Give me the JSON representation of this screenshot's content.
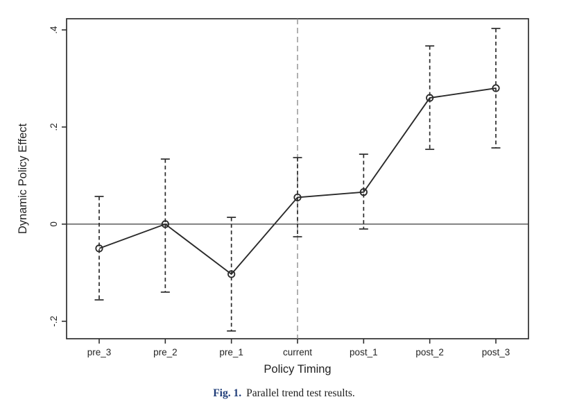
{
  "caption": {
    "prefix": "Fig. 1.",
    "text": "Parallel trend test results."
  },
  "colors": {
    "axis": "#2e2e2e",
    "series_line": "#2a2a2a",
    "error_bar": "#2a2a2a",
    "zero_line": "#3a3a3a",
    "reference_line": "#8f8f8f",
    "marker_stroke": "#2a2a2a",
    "text": "#242424",
    "caption_prefix": "#1f3c78",
    "background": "#ffffff"
  },
  "chart_data": {
    "type": "line",
    "title": "",
    "xlabel": "Policy Timing",
    "ylabel": "Dynamic Policy Effect",
    "categories": [
      "pre_3",
      "pre_2",
      "pre_1",
      "current",
      "post_1",
      "post_2",
      "post_3"
    ],
    "series": [
      {
        "name": "Dynamic Policy Effect",
        "marker": "open-circle",
        "values": [
          -0.05,
          0.0,
          -0.103,
          0.055,
          0.066,
          0.26,
          0.28
        ]
      }
    ],
    "error_bars": {
      "style": "dashed-with-caps",
      "lower": [
        -0.156,
        -0.14,
        -0.22,
        -0.026,
        -0.01,
        0.154,
        0.157
      ],
      "upper": [
        0.057,
        0.134,
        0.014,
        0.137,
        0.144,
        0.367,
        0.403
      ]
    },
    "reference_lines": {
      "horizontal_value": 0,
      "vertical_category": "current"
    },
    "yticks": [
      {
        "value": 0.4,
        "label": ".4"
      },
      {
        "value": 0.2,
        "label": ".2"
      },
      {
        "value": 0.0,
        "label": "0"
      },
      {
        "value": -0.2,
        "label": "-.2"
      }
    ],
    "ylim": [
      -0.236,
      0.423
    ],
    "grid": false,
    "legend": "none"
  }
}
